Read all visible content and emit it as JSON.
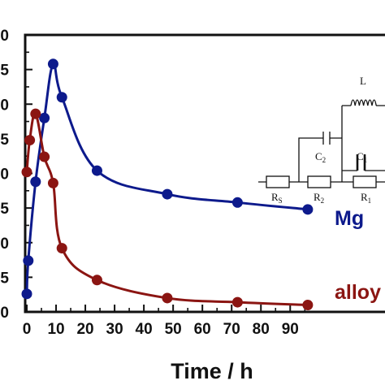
{
  "chart_data": {
    "type": "line",
    "xlabel": "Time / h",
    "ylabel": "",
    "xlim": [
      0,
      96
    ],
    "ylim": [
      0.0,
      2.0
    ],
    "x_ticks": [
      "0",
      "10",
      "20",
      "30",
      "40",
      "50",
      "60",
      "70",
      "80",
      "90"
    ],
    "y_ticks": [
      "0",
      "5",
      "0",
      "5",
      "0",
      "5",
      "0",
      "5",
      "0"
    ],
    "grid": false,
    "series": [
      {
        "name": "Mg",
        "color": "#0d1a8c",
        "points": [
          [
            0,
            0.13
          ],
          [
            0.5,
            0.37
          ],
          [
            3,
            0.94
          ],
          [
            6,
            1.4
          ],
          [
            9,
            1.79
          ],
          [
            12,
            1.55
          ],
          [
            24,
            1.02
          ],
          [
            48,
            0.85
          ],
          [
            72,
            0.79
          ],
          [
            96,
            0.74
          ]
        ]
      },
      {
        "name": "alloy",
        "color": "#8b1512",
        "points": [
          [
            0,
            1.01
          ],
          [
            1,
            1.24
          ],
          [
            3,
            1.43
          ],
          [
            6,
            1.12
          ],
          [
            9,
            0.93
          ],
          [
            12,
            0.46
          ],
          [
            24,
            0.23
          ],
          [
            48,
            0.1
          ],
          [
            72,
            0.07
          ],
          [
            96,
            0.05
          ]
        ]
      }
    ],
    "inset": {
      "type": "equivalent-circuit",
      "labels": {
        "L": "L",
        "C2": "C",
        "C2_sub": "2",
        "C1": "C",
        "C1_sub": "1",
        "Rs": "R",
        "Rs_sub": "S",
        "R2": "R",
        "R2_sub": "2",
        "R1": "R",
        "R1_sub": "1"
      }
    }
  }
}
